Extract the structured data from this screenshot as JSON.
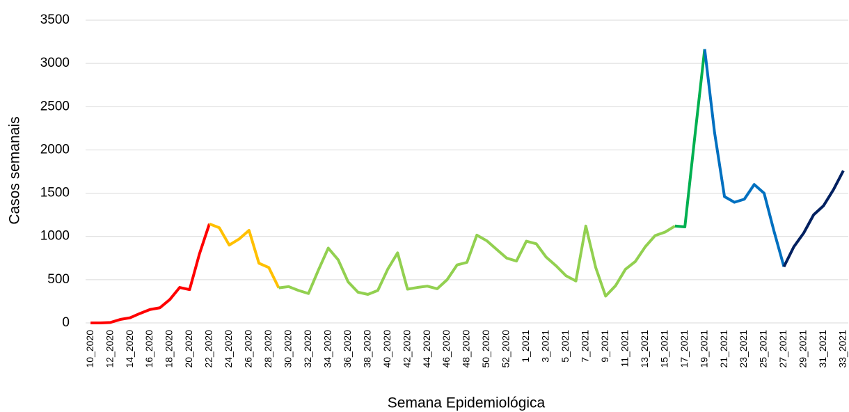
{
  "chart_data": {
    "type": "line",
    "x_label": "Semana Epidemiológica",
    "y_label": "Casos semanais",
    "categories": [
      "10_2020",
      null,
      "12_2020",
      null,
      "14_2020",
      null,
      "16_2020",
      null,
      "18_2020",
      null,
      "20_2020",
      null,
      "22_2020",
      null,
      "24_2020",
      null,
      "26_2020",
      null,
      "28_2020",
      null,
      "30_2020",
      null,
      "32_2020",
      null,
      "34_2020",
      null,
      "36_2020",
      null,
      "38_2020",
      null,
      "40_2020",
      null,
      "42_2020",
      null,
      "44_2020",
      null,
      "46_2020",
      null,
      "48_2020",
      null,
      "50_2020",
      null,
      "52_2020",
      null,
      "1_2021",
      null,
      "3_2021",
      null,
      "5_2021",
      null,
      "7_2021",
      null,
      "9_2021",
      null,
      "11_2021",
      null,
      "13_2021",
      null,
      "15_2021",
      null,
      "17_2021",
      null,
      "19_2021",
      null,
      "21_2021",
      null,
      "23_2021",
      null,
      "25_2021",
      null,
      "27_2021",
      null,
      "29_2021",
      null,
      "31_2021",
      null,
      "33_2021"
    ],
    "series": [
      {
        "color": "#ff0000",
        "values": [
          0,
          0,
          5,
          40,
          60,
          110,
          155,
          175,
          270,
          410,
          385,
          800,
          1145,
          null,
          null,
          null,
          null,
          null,
          null,
          null,
          null,
          null,
          null,
          null,
          null,
          null,
          null,
          null,
          null,
          null,
          null,
          null,
          null,
          null,
          null,
          null,
          null,
          null,
          null,
          null,
          null,
          null,
          null,
          null,
          null,
          null,
          null,
          null,
          null,
          null,
          null,
          null,
          null,
          null,
          null,
          null,
          null,
          null,
          null,
          null,
          null,
          null,
          null,
          null,
          null,
          null,
          null,
          null,
          null,
          null,
          null,
          null,
          null,
          null,
          null,
          null,
          null
        ]
      },
      {
        "color": "#ffc000",
        "values": [
          null,
          null,
          null,
          null,
          null,
          null,
          null,
          null,
          null,
          null,
          null,
          null,
          1145,
          1100,
          900,
          970,
          1070,
          690,
          640,
          405,
          null,
          null,
          null,
          null,
          null,
          null,
          null,
          null,
          null,
          null,
          null,
          null,
          null,
          null,
          null,
          null,
          null,
          null,
          null,
          null,
          null,
          null,
          null,
          null,
          null,
          null,
          null,
          null,
          null,
          null,
          null,
          null,
          null,
          null,
          null,
          null,
          null,
          null,
          null,
          null,
          null,
          null,
          null,
          null,
          null,
          null,
          null,
          null,
          null,
          null,
          null,
          null,
          null,
          null,
          null,
          null,
          null
        ]
      },
      {
        "color": "#92d050",
        "values": [
          null,
          null,
          null,
          null,
          null,
          null,
          null,
          null,
          null,
          null,
          null,
          null,
          null,
          null,
          null,
          null,
          null,
          null,
          null,
          405,
          420,
          375,
          340,
          610,
          865,
          730,
          475,
          355,
          330,
          375,
          620,
          810,
          390,
          410,
          425,
          395,
          500,
          670,
          700,
          1015,
          950,
          850,
          750,
          715,
          945,
          915,
          760,
          660,
          545,
          485,
          1120,
          640,
          310,
          430,
          620,
          710,
          880,
          1010,
          1050,
          1120,
          null,
          null,
          null,
          null,
          null,
          null,
          null,
          null,
          null,
          null,
          null,
          null,
          null,
          null,
          null,
          null,
          null
        ]
      },
      {
        "color": "#00b050",
        "values": [
          null,
          null,
          null,
          null,
          null,
          null,
          null,
          null,
          null,
          null,
          null,
          null,
          null,
          null,
          null,
          null,
          null,
          null,
          null,
          null,
          null,
          null,
          null,
          null,
          null,
          null,
          null,
          null,
          null,
          null,
          null,
          null,
          null,
          null,
          null,
          null,
          null,
          null,
          null,
          null,
          null,
          null,
          null,
          null,
          null,
          null,
          null,
          null,
          null,
          null,
          null,
          null,
          null,
          null,
          null,
          null,
          null,
          null,
          null,
          1120,
          1110,
          2150,
          3165,
          null,
          null,
          null,
          null,
          null,
          null,
          null,
          null,
          null,
          null,
          null,
          null,
          null,
          null
        ]
      },
      {
        "color": "#0070c0",
        "values": [
          null,
          null,
          null,
          null,
          null,
          null,
          null,
          null,
          null,
          null,
          null,
          null,
          null,
          null,
          null,
          null,
          null,
          null,
          null,
          null,
          null,
          null,
          null,
          null,
          null,
          null,
          null,
          null,
          null,
          null,
          null,
          null,
          null,
          null,
          null,
          null,
          null,
          null,
          null,
          null,
          null,
          null,
          null,
          null,
          null,
          null,
          null,
          null,
          null,
          null,
          null,
          null,
          null,
          null,
          null,
          null,
          null,
          null,
          null,
          null,
          null,
          null,
          3165,
          2200,
          1460,
          1395,
          1430,
          1600,
          1500,
          1060,
          650,
          null,
          null,
          null,
          null,
          null,
          null
        ]
      },
      {
        "color": "#002060",
        "values": [
          null,
          null,
          null,
          null,
          null,
          null,
          null,
          null,
          null,
          null,
          null,
          null,
          null,
          null,
          null,
          null,
          null,
          null,
          null,
          null,
          null,
          null,
          null,
          null,
          null,
          null,
          null,
          null,
          null,
          null,
          null,
          null,
          null,
          null,
          null,
          null,
          null,
          null,
          null,
          null,
          null,
          null,
          null,
          null,
          null,
          null,
          null,
          null,
          null,
          null,
          null,
          null,
          null,
          null,
          null,
          null,
          null,
          null,
          null,
          null,
          null,
          null,
          null,
          null,
          null,
          null,
          null,
          null,
          null,
          null,
          650,
          880,
          1040,
          1250,
          1355,
          1540,
          1760
        ]
      }
    ],
    "ylim": [
      0,
      3500
    ],
    "yticks": [
      0,
      500,
      1000,
      1500,
      2000,
      2500,
      3000,
      3500
    ],
    "grid": true
  }
}
